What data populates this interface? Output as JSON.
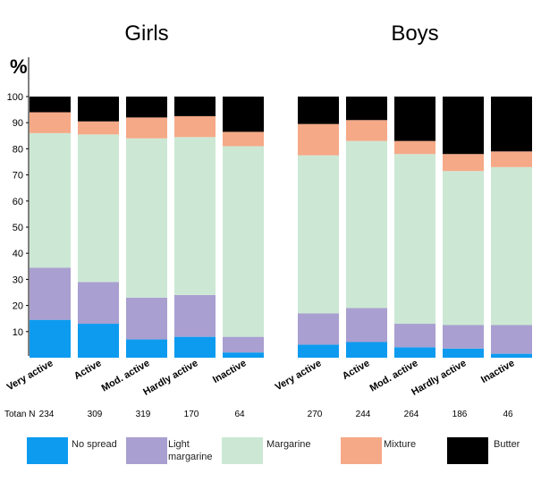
{
  "chart_data": [
    {
      "type": "bar",
      "stacked": true,
      "title": "Girls",
      "ylabel": "%",
      "ylim": [
        0,
        100
      ],
      "yticks": [
        10,
        20,
        30,
        40,
        50,
        60,
        70,
        80,
        90,
        100
      ],
      "categories": [
        "Very active",
        "Active",
        "Mod. active",
        "Hardly active",
        "Inactive"
      ],
      "n_label": "Totan N",
      "n": [
        234,
        309,
        319,
        170,
        64
      ],
      "series": [
        {
          "name": "No spread",
          "color": "#0d9bf0",
          "values": [
            14.5,
            13,
            7,
            8,
            2
          ]
        },
        {
          "name": "Light margarine",
          "color": "#a99fd0",
          "values": [
            20,
            16,
            16,
            16,
            6
          ]
        },
        {
          "name": "Margarine",
          "color": "#cce8d4",
          "values": [
            51.5,
            56.5,
            61,
            60.5,
            73
          ]
        },
        {
          "name": "Mixture",
          "color": "#f5a987",
          "values": [
            8,
            5,
            8,
            8,
            5.5
          ]
        },
        {
          "name": "Butter",
          "color": "#000000",
          "values": [
            6,
            9.5,
            8,
            7.5,
            13.5
          ]
        }
      ]
    },
    {
      "type": "bar",
      "stacked": true,
      "title": "Boys",
      "ylim": [
        0,
        100
      ],
      "categories": [
        "Very active",
        "Active",
        "Mod. active",
        "Hardly active",
        "Inactive"
      ],
      "n": [
        270,
        244,
        264,
        186,
        46
      ],
      "series": [
        {
          "color": "#0d9bf0",
          "values": [
            5,
            6,
            4,
            3.5,
            1.5
          ]
        },
        {
          "color": "#a99fd0",
          "values": [
            12,
            13,
            9,
            9,
            11
          ]
        },
        {
          "color": "#cce8d4",
          "values": [
            60.5,
            64,
            65,
            59,
            60.5
          ]
        },
        {
          "color": "#f5a987",
          "values": [
            12,
            8,
            5,
            6.5,
            6
          ]
        },
        {
          "color": "#000000",
          "values": [
            10.5,
            9,
            17,
            22,
            21
          ]
        }
      ]
    }
  ]
}
